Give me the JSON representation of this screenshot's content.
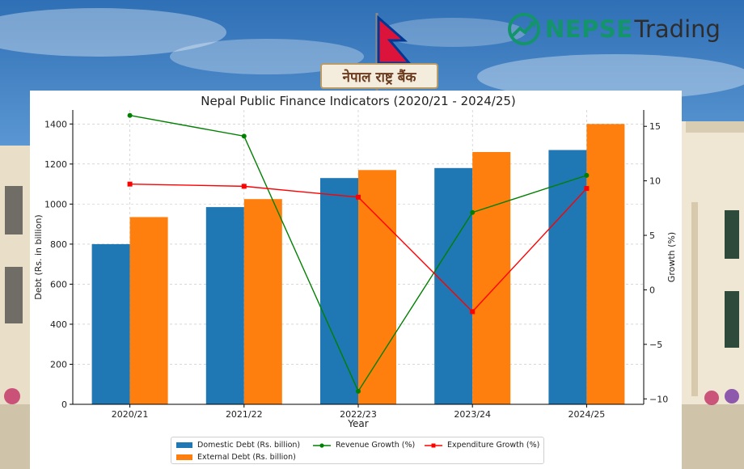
{
  "brand": {
    "word1": "NEPSE",
    "word2": "Trading",
    "accent": "#14946a",
    "icon": "trend-up-arrow-icon"
  },
  "bank_plaque": {
    "text": "नेपाल राष्ट्र बैंक"
  },
  "chart_data": {
    "type": "bar",
    "title": "Nepal Public Finance Indicators (2020/21 - 2024/25)",
    "xlabel": "Year",
    "ylabel": "Debt (Rs. in billion)",
    "ylabel_right": "Growth (%)",
    "categories": [
      "2020/21",
      "2021/22",
      "2022/23",
      "2023/24",
      "2024/25"
    ],
    "ylim": [
      0,
      1470
    ],
    "yticks": [
      0,
      200,
      400,
      600,
      800,
      1000,
      1200,
      1400
    ],
    "ylim_right": [
      -10.5,
      16.5
    ],
    "yticks_right": [
      -10,
      -5,
      0,
      5,
      10,
      15
    ],
    "grid": true,
    "legend_position": "bottom-center",
    "bar_series": [
      {
        "name": "Domestic Debt (Rs. billion)",
        "values": [
          800,
          985,
          1130,
          1180,
          1270
        ],
        "color": "#1f77b4"
      },
      {
        "name": "External Debt (Rs. billion)",
        "values": [
          935,
          1025,
          1170,
          1260,
          1400
        ],
        "color": "#ff7f0e"
      }
    ],
    "line_series": [
      {
        "name": "Revenue Growth (%)",
        "values": [
          16,
          14.1,
          -9.3,
          7.1,
          10.5
        ],
        "color": "#008000",
        "marker": "circle",
        "axis": "right"
      },
      {
        "name": "Expenditure Growth (%)",
        "values": [
          9.7,
          9.5,
          8.5,
          -2,
          9.3
        ],
        "color": "#ff0000",
        "marker": "square",
        "axis": "right"
      }
    ]
  }
}
